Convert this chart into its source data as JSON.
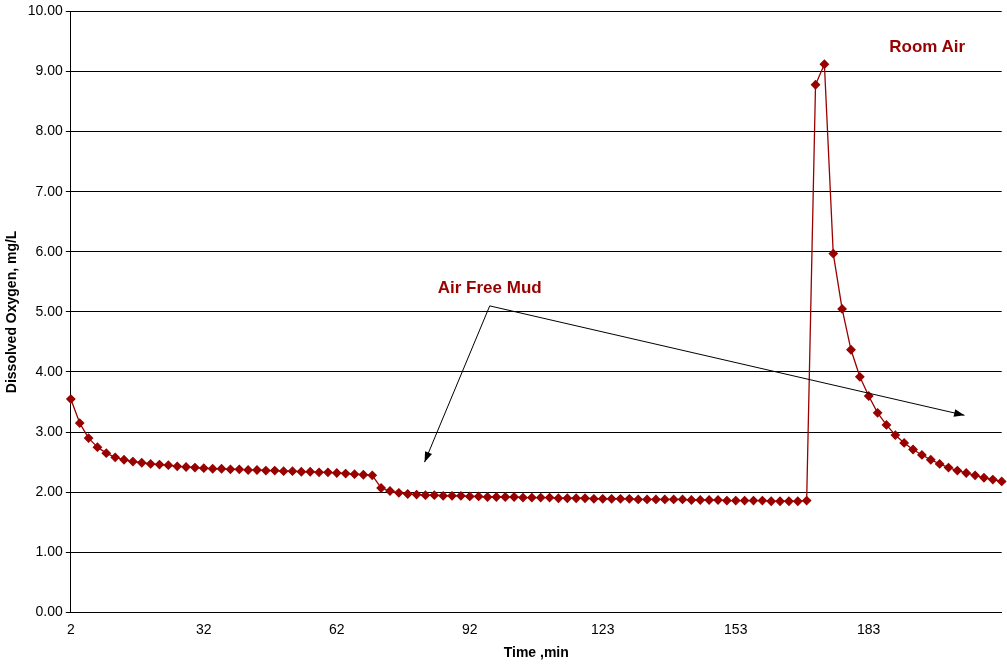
{
  "chart_data": {
    "type": "line",
    "xlabel": "Time ,min",
    "ylabel": "Dissolved Oxygen, mg/L",
    "categories": [
      "2",
      null,
      null,
      null,
      null,
      null,
      null,
      null,
      null,
      null,
      null,
      null,
      null,
      null,
      null,
      "32",
      null,
      null,
      null,
      null,
      null,
      null,
      null,
      null,
      null,
      null,
      null,
      null,
      null,
      null,
      "62",
      null,
      null,
      null,
      null,
      null,
      null,
      null,
      null,
      null,
      null,
      null,
      null,
      null,
      null,
      "92",
      null,
      null,
      null,
      null,
      null,
      null,
      null,
      null,
      null,
      null,
      null,
      null,
      null,
      null,
      "123",
      null,
      null,
      null,
      null,
      null,
      null,
      null,
      null,
      null,
      null,
      null,
      null,
      null,
      null,
      "153",
      null,
      null,
      null,
      null,
      null,
      null,
      null,
      null,
      null,
      null,
      null,
      null,
      null,
      null,
      "183",
      null,
      null,
      null,
      null,
      null,
      null,
      null,
      null,
      null,
      null,
      null,
      null,
      null,
      null,
      null
    ],
    "series": [
      {
        "color": "#990000",
        "values": [
          3.55,
          3.15,
          2.9,
          2.75,
          2.65,
          2.58,
          2.54,
          2.51,
          2.49,
          2.47,
          2.46,
          2.45,
          2.43,
          2.42,
          2.41,
          2.4,
          2.39,
          2.39,
          2.38,
          2.38,
          2.37,
          2.37,
          2.36,
          2.36,
          2.35,
          2.35,
          2.34,
          2.34,
          2.33,
          2.33,
          2.32,
          2.31,
          2.3,
          2.29,
          2.28,
          2.07,
          2.02,
          1.99,
          1.97,
          1.96,
          1.95,
          1.95,
          1.94,
          1.94,
          1.94,
          1.93,
          1.93,
          1.92,
          1.92,
          1.92,
          1.92,
          1.91,
          1.91,
          1.91,
          1.91,
          1.9,
          1.9,
          1.9,
          1.9,
          1.89,
          1.89,
          1.89,
          1.89,
          1.89,
          1.88,
          1.88,
          1.88,
          1.88,
          1.88,
          1.88,
          1.87,
          1.87,
          1.87,
          1.87,
          1.86,
          1.86,
          1.86,
          1.86,
          1.86,
          1.85,
          1.85,
          1.85,
          1.85,
          1.86,
          8.78,
          9.12,
          5.97,
          5.05,
          4.37,
          3.92,
          3.6,
          3.32,
          3.12,
          2.95,
          2.82,
          2.71,
          2.62,
          2.54,
          2.47,
          2.41,
          2.36,
          2.32,
          2.28,
          2.24,
          2.21,
          2.18
        ]
      }
    ],
    "ylim": [
      0,
      10
    ],
    "yticks": [
      {
        "value": 0,
        "label": "0.00"
      },
      {
        "value": 1,
        "label": "1.00"
      },
      {
        "value": 2,
        "label": "2.00"
      },
      {
        "value": 3,
        "label": "3.00"
      },
      {
        "value": 4,
        "label": "4.00"
      },
      {
        "value": 5,
        "label": "5.00"
      },
      {
        "value": 6,
        "label": "6.00"
      },
      {
        "value": 7,
        "label": "7.00"
      },
      {
        "value": 8,
        "label": "8.00"
      },
      {
        "value": 9,
        "label": "9.00"
      },
      {
        "value": 10,
        "label": "10.00"
      }
    ],
    "grid": "y",
    "marker": "diamond",
    "line_style": "solid",
    "legend": false,
    "annotations": [
      "Air Free Mud",
      "Room Air"
    ]
  }
}
